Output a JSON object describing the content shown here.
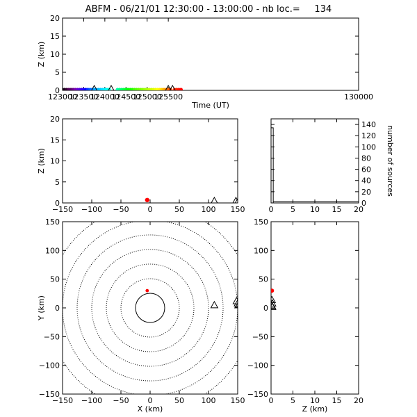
{
  "title": "ABFM - 06/21/01 12:30:00 - 13:00:00 - nb loc.=     134",
  "colors": {
    "axis": "#000000",
    "location": "#ff0000"
  },
  "chart_data": [
    {
      "id": "time_height",
      "type": "scatter",
      "xlabel": "Time (UT)",
      "ylabel": "Z (km)",
      "xlim": [
        123000,
        130000
      ],
      "ylim": [
        0,
        20
      ],
      "xticks": [
        123000,
        123500,
        124000,
        124500,
        125000,
        125500,
        130000
      ],
      "yticks": [
        0,
        5,
        10,
        15,
        20
      ],
      "points": [
        {
          "x": 123000,
          "y": 0,
          "color": "#000000"
        },
        {
          "x": 123050,
          "y": 0,
          "color": "#1a001a"
        },
        {
          "x": 123100,
          "y": 0,
          "color": "#330033"
        },
        {
          "x": 123150,
          "y": 0,
          "color": "#55005a"
        },
        {
          "x": 123200,
          "y": 0,
          "color": "#550066"
        },
        {
          "x": 123250,
          "y": 0,
          "color": "#660088"
        },
        {
          "x": 123300,
          "y": 0,
          "color": "#7700aa"
        },
        {
          "x": 123350,
          "y": 0,
          "color": "#6600cc"
        },
        {
          "x": 123400,
          "y": 0,
          "color": "#5500dd"
        },
        {
          "x": 123450,
          "y": 0,
          "color": "#3300ee"
        },
        {
          "x": 123500,
          "y": 0,
          "color": "#2200ff"
        },
        {
          "x": 123550,
          "y": 0,
          "color": "#0000ff"
        },
        {
          "x": 123600,
          "y": 0,
          "color": "#0033ff"
        },
        {
          "x": 123650,
          "y": 0,
          "color": "#0055ff"
        },
        {
          "x": 123700,
          "y": 0,
          "color": "#0077ff"
        },
        {
          "x": 123750,
          "y": 0,
          "color": "#0099ff"
        },
        {
          "x": 123800,
          "y": 0,
          "color": "#00aaff"
        },
        {
          "x": 123850,
          "y": 0,
          "color": "#00bbff"
        },
        {
          "x": 123900,
          "y": 0,
          "color": "#00ccff"
        },
        {
          "x": 123950,
          "y": 0,
          "color": "#00ddff"
        },
        {
          "x": 124000,
          "y": 0,
          "color": "#00eeff"
        },
        {
          "x": 124050,
          "y": 0,
          "color": "#00ffee"
        },
        {
          "x": 124100,
          "y": 0,
          "color": "#00ffdd"
        },
        {
          "x": 124300,
          "y": 0,
          "color": "#00ffaa"
        },
        {
          "x": 124350,
          "y": 0,
          "color": "#00ff88"
        },
        {
          "x": 124400,
          "y": 0,
          "color": "#00ff66"
        },
        {
          "x": 124450,
          "y": 0,
          "color": "#00ff44"
        },
        {
          "x": 124500,
          "y": 0,
          "color": "#00ff22"
        },
        {
          "x": 124550,
          "y": 0,
          "color": "#00ff00"
        },
        {
          "x": 124600,
          "y": 0,
          "color": "#11ff00"
        },
        {
          "x": 124650,
          "y": 0,
          "color": "#22ff00"
        },
        {
          "x": 124700,
          "y": 0,
          "color": "#44ff00"
        },
        {
          "x": 124750,
          "y": 0,
          "color": "#55ff00"
        },
        {
          "x": 124800,
          "y": 0,
          "color": "#66ff00"
        },
        {
          "x": 124850,
          "y": 0,
          "color": "#77ff00"
        },
        {
          "x": 124900,
          "y": 0,
          "color": "#88ff00"
        },
        {
          "x": 124950,
          "y": 0,
          "color": "#99ff00"
        },
        {
          "x": 125000,
          "y": 0,
          "color": "#aaff00"
        },
        {
          "x": 125050,
          "y": 0,
          "color": "#bbff00"
        },
        {
          "x": 125100,
          "y": 0,
          "color": "#ccff00"
        },
        {
          "x": 125150,
          "y": 0,
          "color": "#ddff00"
        },
        {
          "x": 125200,
          "y": 0,
          "color": "#eeff00"
        },
        {
          "x": 125250,
          "y": 0,
          "color": "#ffff00"
        },
        {
          "x": 125300,
          "y": 0,
          "color": "#ffee00"
        },
        {
          "x": 125350,
          "y": 0,
          "color": "#ffcc00"
        },
        {
          "x": 125400,
          "y": 0,
          "color": "#ffaa00"
        },
        {
          "x": 125450,
          "y": 0,
          "color": "#ff8800"
        },
        {
          "x": 125500,
          "y": 0,
          "color": "#ff6600"
        },
        {
          "x": 125550,
          "y": 0,
          "color": "#ff4400"
        },
        {
          "x": 125650,
          "y": 0,
          "color": "#ff3300"
        },
        {
          "x": 125700,
          "y": 0,
          "color": "#ff2200"
        },
        {
          "x": 125750,
          "y": 0,
          "color": "#ff1100"
        },
        {
          "x": 125800,
          "y": 0,
          "color": "#ff0000"
        }
      ],
      "stations_x": [
        123750,
        124150,
        125500,
        125600
      ]
    },
    {
      "id": "x_height",
      "type": "scatter",
      "xlabel": "",
      "ylabel": "Z (km)",
      "xlim": [
        -150,
        150
      ],
      "ylim": [
        0,
        20
      ],
      "xticks": [
        -150,
        -100,
        -50,
        0,
        50,
        100,
        150
      ],
      "yticks": [
        0,
        5,
        10,
        15,
        20
      ],
      "points": [
        {
          "x": -5,
          "y": 0.2
        }
      ],
      "stations_x": [
        110,
        147,
        151
      ]
    },
    {
      "id": "height_histogram",
      "type": "bar",
      "xlabel": "",
      "ylabel": "number of sources",
      "xlim": [
        0,
        20
      ],
      "ylim": [
        0,
        150
      ],
      "xticks": [
        0,
        5,
        10,
        15,
        20
      ],
      "yticks": [
        0,
        20,
        40,
        60,
        80,
        100,
        120,
        140
      ],
      "bins": [
        {
          "z_start": 0,
          "z_end": 0.5,
          "count": 134
        }
      ],
      "baseline_end": 20
    },
    {
      "id": "plan_view",
      "type": "scatter",
      "xlabel": "X (km)",
      "ylabel": "Y (km)",
      "xlim": [
        -150,
        150
      ],
      "ylim": [
        -150,
        150
      ],
      "xticks": [
        -150,
        -100,
        -50,
        0,
        50,
        100,
        150
      ],
      "yticks": [
        -150,
        -100,
        -50,
        0,
        50,
        100,
        150
      ],
      "range_rings_km": [
        25,
        50,
        75,
        100,
        125,
        150,
        175
      ],
      "points": [
        {
          "x": -5,
          "y": 30
        }
      ],
      "stations": [
        {
          "x": 110,
          "y": 5
        },
        {
          "x": 148,
          "y": 12
        },
        {
          "x": 150,
          "y": 8
        },
        {
          "x": 152,
          "y": 6
        }
      ]
    },
    {
      "id": "height_y",
      "type": "scatter",
      "xlabel": "Z (km)",
      "ylabel": "",
      "xlim": [
        0,
        20
      ],
      "ylim": [
        -150,
        150
      ],
      "xticks": [
        0,
        5,
        10,
        15,
        20
      ],
      "yticks": [
        -150,
        -100,
        -50,
        0,
        50,
        100,
        150
      ],
      "points": [
        {
          "x": 0.2,
          "y": 30
        }
      ],
      "stations": [
        {
          "x": 0.2,
          "y": 14
        },
        {
          "x": 0.3,
          "y": 8
        },
        {
          "x": 0.2,
          "y": 4
        },
        {
          "x": 0.3,
          "y": 2
        }
      ]
    }
  ]
}
